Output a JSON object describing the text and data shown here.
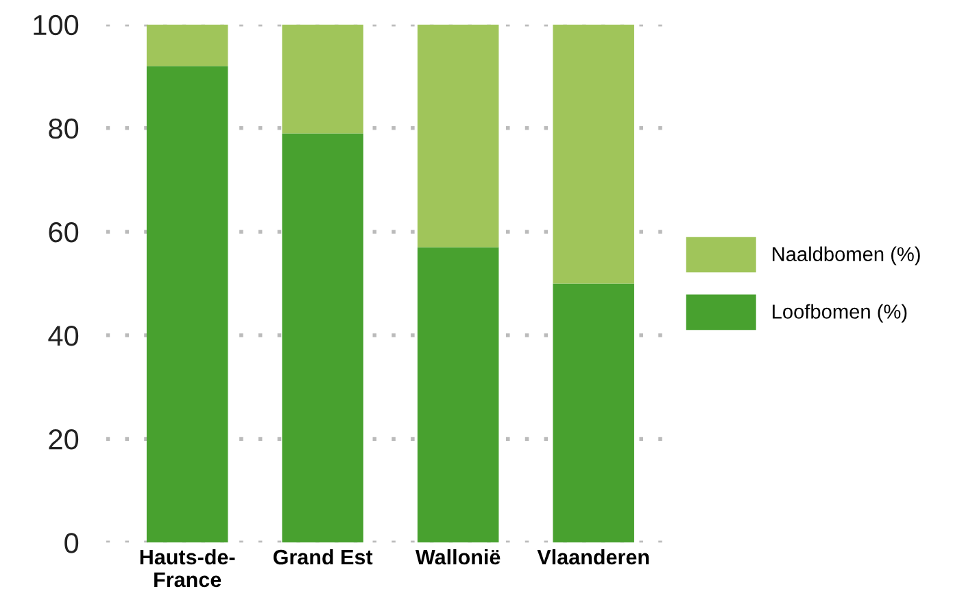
{
  "chart_data": {
    "type": "bar",
    "stacked": true,
    "categories": [
      "Hauts-de-\nFrance",
      "Grand Est",
      "Wallonië",
      "Vlaanderen"
    ],
    "series": [
      {
        "name": "Loofbomen (%)",
        "color": "#48a12f",
        "values": [
          92,
          79,
          57,
          50
        ]
      },
      {
        "name": "Naaldbomen (%)",
        "color": "#a0c55a",
        "values": [
          8,
          21,
          43,
          50
        ]
      }
    ],
    "ylim": [
      0,
      100
    ],
    "yticks": [
      0,
      20,
      40,
      60,
      80,
      100
    ],
    "grid": "y",
    "legend": "right"
  }
}
